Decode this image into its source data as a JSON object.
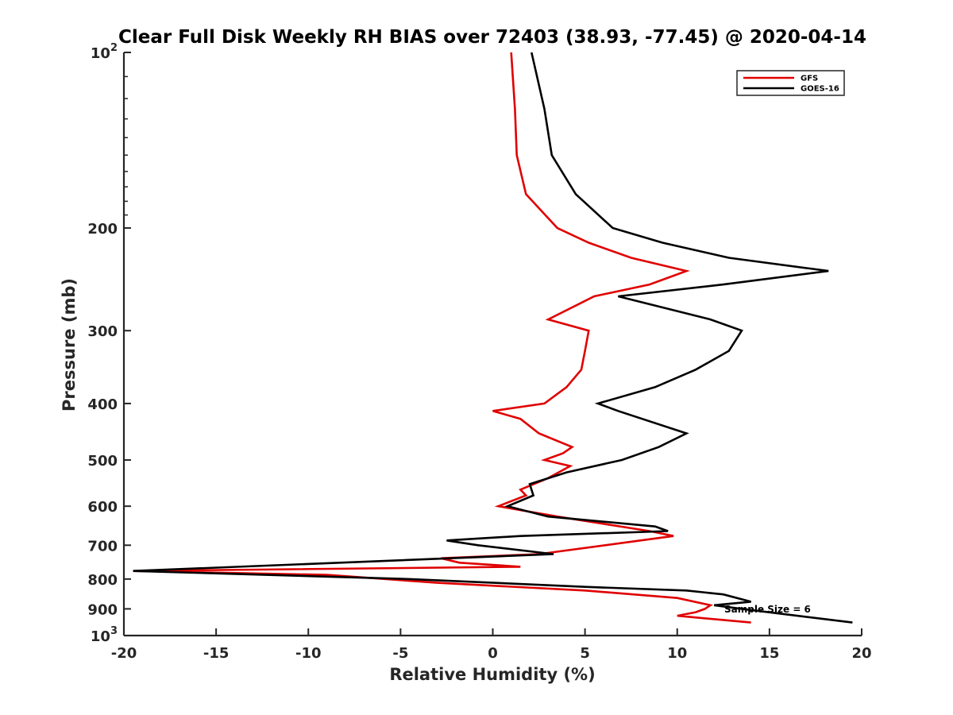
{
  "chart_data": {
    "type": "line",
    "title": "Clear Full Disk Weekly RH BIAS over 72403 (38.93, -77.45) @ 2020-04-14",
    "xlabel": "Relative Humidity (%)",
    "ylabel": "Pressure (mb)",
    "xlim": [
      -20,
      20
    ],
    "ylim": [
      100,
      1000
    ],
    "y_scale": "log",
    "y_reversed": true,
    "x_ticks": [
      -20,
      -15,
      -10,
      -5,
      0,
      5,
      10,
      15,
      20
    ],
    "x_tick_labels": [
      "-20",
      "-15",
      "-10",
      "-5",
      "0",
      "5",
      "10",
      "15",
      "20"
    ],
    "y_ticks": [
      100,
      200,
      300,
      400,
      500,
      600,
      700,
      800,
      900,
      1000
    ],
    "y_tick_labels": [
      {
        "base": "10",
        "sup": "2"
      },
      {
        "base": "200",
        "sup": ""
      },
      {
        "base": "300",
        "sup": ""
      },
      {
        "base": "400",
        "sup": ""
      },
      {
        "base": "500",
        "sup": ""
      },
      {
        "base": "600",
        "sup": ""
      },
      {
        "base": "700",
        "sup": ""
      },
      {
        "base": "800",
        "sup": ""
      },
      {
        "base": "900",
        "sup": ""
      },
      {
        "base": "10",
        "sup": "3"
      }
    ],
    "grid": false,
    "legend_position": "top-right",
    "annotation": "Sample Size = 6",
    "series": [
      {
        "name": "GFS",
        "color": "#e00000",
        "points": [
          [
            1.0,
            100
          ],
          [
            1.2,
            125
          ],
          [
            1.3,
            150
          ],
          [
            1.8,
            175
          ],
          [
            3.5,
            200
          ],
          [
            5.2,
            212
          ],
          [
            7.5,
            225
          ],
          [
            10.5,
            237
          ],
          [
            8.5,
            250
          ],
          [
            5.5,
            262
          ],
          [
            3.0,
            287
          ],
          [
            5.2,
            300
          ],
          [
            5.0,
            325
          ],
          [
            4.8,
            350
          ],
          [
            4.0,
            375
          ],
          [
            2.8,
            400
          ],
          [
            0.0,
            412
          ],
          [
            1.5,
            425
          ],
          [
            2.5,
            450
          ],
          [
            4.3,
            475
          ],
          [
            3.8,
            487
          ],
          [
            2.8,
            500
          ],
          [
            4.2,
            512
          ],
          [
            3.0,
            537
          ],
          [
            1.5,
            562
          ],
          [
            1.8,
            575
          ],
          [
            0.3,
            600
          ],
          [
            3.5,
            625
          ],
          [
            8.5,
            662
          ],
          [
            9.8,
            675
          ],
          [
            2.5,
            725
          ],
          [
            -2.8,
            737
          ],
          [
            -1.8,
            750
          ],
          [
            1.5,
            762
          ],
          [
            -19.5,
            775
          ],
          [
            -9.0,
            787
          ],
          [
            -3.0,
            812
          ],
          [
            5.0,
            837
          ],
          [
            10.0,
            862
          ],
          [
            11.8,
            887
          ],
          [
            11.5,
            900
          ],
          [
            11.0,
            912
          ],
          [
            10.0,
            925
          ],
          [
            14.0,
            950
          ]
        ]
      },
      {
        "name": "GOES-16",
        "color": "#000000",
        "points": [
          [
            2.1,
            100
          ],
          [
            2.8,
            125
          ],
          [
            3.2,
            150
          ],
          [
            4.5,
            175
          ],
          [
            6.5,
            200
          ],
          [
            9.2,
            212
          ],
          [
            12.8,
            225
          ],
          [
            18.2,
            237
          ],
          [
            12.5,
            250
          ],
          [
            6.8,
            262
          ],
          [
            11.8,
            287
          ],
          [
            13.5,
            300
          ],
          [
            12.8,
            325
          ],
          [
            11.0,
            350
          ],
          [
            8.8,
            375
          ],
          [
            5.7,
            400
          ],
          [
            6.8,
            412
          ],
          [
            10.5,
            450
          ],
          [
            9.0,
            475
          ],
          [
            7.0,
            500
          ],
          [
            4.0,
            525
          ],
          [
            2.0,
            550
          ],
          [
            2.2,
            575
          ],
          [
            0.8,
            600
          ],
          [
            3.0,
            625
          ],
          [
            8.8,
            650
          ],
          [
            9.5,
            662
          ],
          [
            1.5,
            675
          ],
          [
            -2.5,
            687
          ],
          [
            -0.8,
            700
          ],
          [
            3.3,
            725
          ],
          [
            -19.5,
            775
          ],
          [
            -4.5,
            800
          ],
          [
            5.0,
            825
          ],
          [
            10.5,
            837
          ],
          [
            12.5,
            850
          ],
          [
            14.0,
            875
          ],
          [
            12.0,
            887
          ],
          [
            13.5,
            900
          ],
          [
            19.5,
            950
          ]
        ]
      }
    ]
  }
}
